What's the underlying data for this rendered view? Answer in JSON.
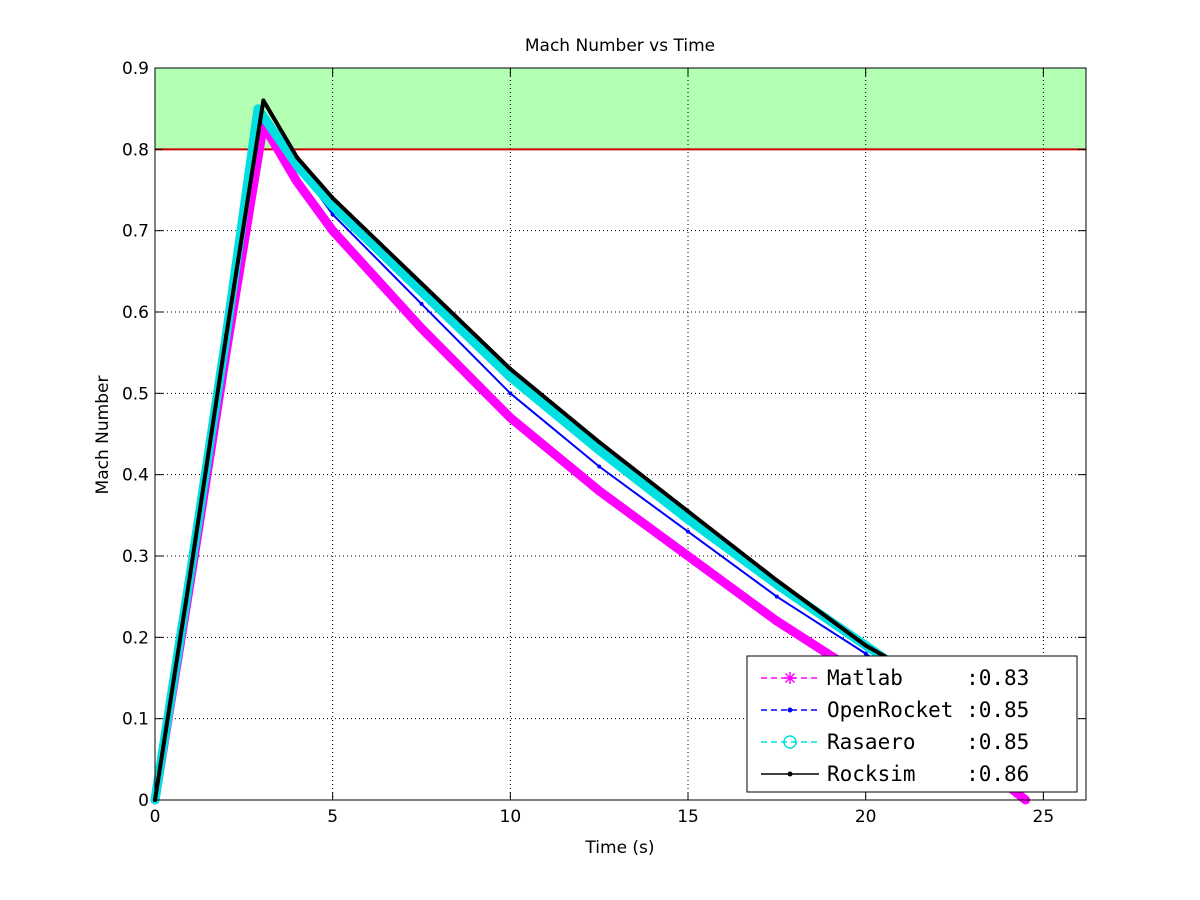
{
  "chart_data": {
    "type": "line",
    "title": "Mach Number vs Time",
    "xlabel": "Time (s)",
    "ylabel": "Mach Number",
    "xlim": [
      0,
      26.2
    ],
    "ylim": [
      0,
      0.9
    ],
    "xticks": [
      0,
      5,
      10,
      15,
      20,
      25
    ],
    "yticks": [
      0,
      0.1,
      0.2,
      0.3,
      0.4,
      0.5,
      0.6,
      0.7,
      0.8,
      0.9
    ],
    "xtick_labels": [
      "0",
      "5",
      "10",
      "15",
      "20",
      "25"
    ],
    "ytick_labels": [
      "0",
      "0.1",
      "0.2",
      "0.3",
      "0.4",
      "0.5",
      "0.6",
      "0.7",
      "0.8",
      "0.9"
    ],
    "grid": true,
    "legend_position": "bottom-right",
    "bands": [
      {
        "y0": 0.8,
        "y1": 0.9,
        "color": "#b3ffb3"
      }
    ],
    "reference_lines": [
      {
        "y": 0.8,
        "color": "#cc0000"
      }
    ],
    "series": [
      {
        "name": "Matlab",
        "legend_label": "Matlab     :0.83",
        "color": "#ff00ff",
        "marker": "star",
        "width": 9,
        "points": [
          [
            0,
            0
          ],
          [
            1,
            0.27
          ],
          [
            2,
            0.55
          ],
          [
            3.05,
            0.83
          ],
          [
            4,
            0.76
          ],
          [
            5,
            0.7
          ],
          [
            7.5,
            0.58
          ],
          [
            10,
            0.47
          ],
          [
            12.5,
            0.38
          ],
          [
            15,
            0.3
          ],
          [
            17.5,
            0.22
          ],
          [
            20,
            0.15
          ],
          [
            22.5,
            0.07
          ],
          [
            24.5,
            0.0
          ]
        ]
      },
      {
        "name": "OpenRocket",
        "legend_label": "OpenRocket :0.85",
        "color": "#0000ff",
        "marker": "dot",
        "width": 2,
        "points": [
          [
            0,
            0
          ],
          [
            1,
            0.28
          ],
          [
            2,
            0.56
          ],
          [
            3.0,
            0.85
          ],
          [
            4,
            0.78
          ],
          [
            5,
            0.72
          ],
          [
            7.5,
            0.61
          ],
          [
            10,
            0.5
          ],
          [
            12.5,
            0.41
          ],
          [
            15,
            0.33
          ],
          [
            17.5,
            0.25
          ],
          [
            20,
            0.18
          ],
          [
            21,
            0.15
          ]
        ]
      },
      {
        "name": "Rasaero",
        "legend_label": "Rasaero    :0.85",
        "color": "#00e0e0",
        "marker": "circle",
        "width": 9,
        "points": [
          [
            0,
            0
          ],
          [
            1,
            0.28
          ],
          [
            2,
            0.57
          ],
          [
            2.9,
            0.85
          ],
          [
            4,
            0.78
          ],
          [
            5,
            0.73
          ],
          [
            7.5,
            0.625
          ],
          [
            10,
            0.52
          ],
          [
            12.5,
            0.43
          ],
          [
            15,
            0.345
          ],
          [
            17.5,
            0.265
          ],
          [
            20,
            0.19
          ],
          [
            21,
            0.16
          ]
        ]
      },
      {
        "name": "Rocksim",
        "legend_label": "Rocksim    :0.86",
        "color": "#000000",
        "marker": "dot",
        "width": 4,
        "points": [
          [
            0,
            0
          ],
          [
            1,
            0.28
          ],
          [
            2,
            0.57
          ],
          [
            3.05,
            0.86
          ],
          [
            4,
            0.79
          ],
          [
            5,
            0.74
          ],
          [
            7.5,
            0.635
          ],
          [
            10,
            0.53
          ],
          [
            12.5,
            0.44
          ],
          [
            15,
            0.355
          ],
          [
            17.5,
            0.27
          ],
          [
            20,
            0.19
          ],
          [
            20.8,
            0.17
          ]
        ]
      }
    ]
  }
}
